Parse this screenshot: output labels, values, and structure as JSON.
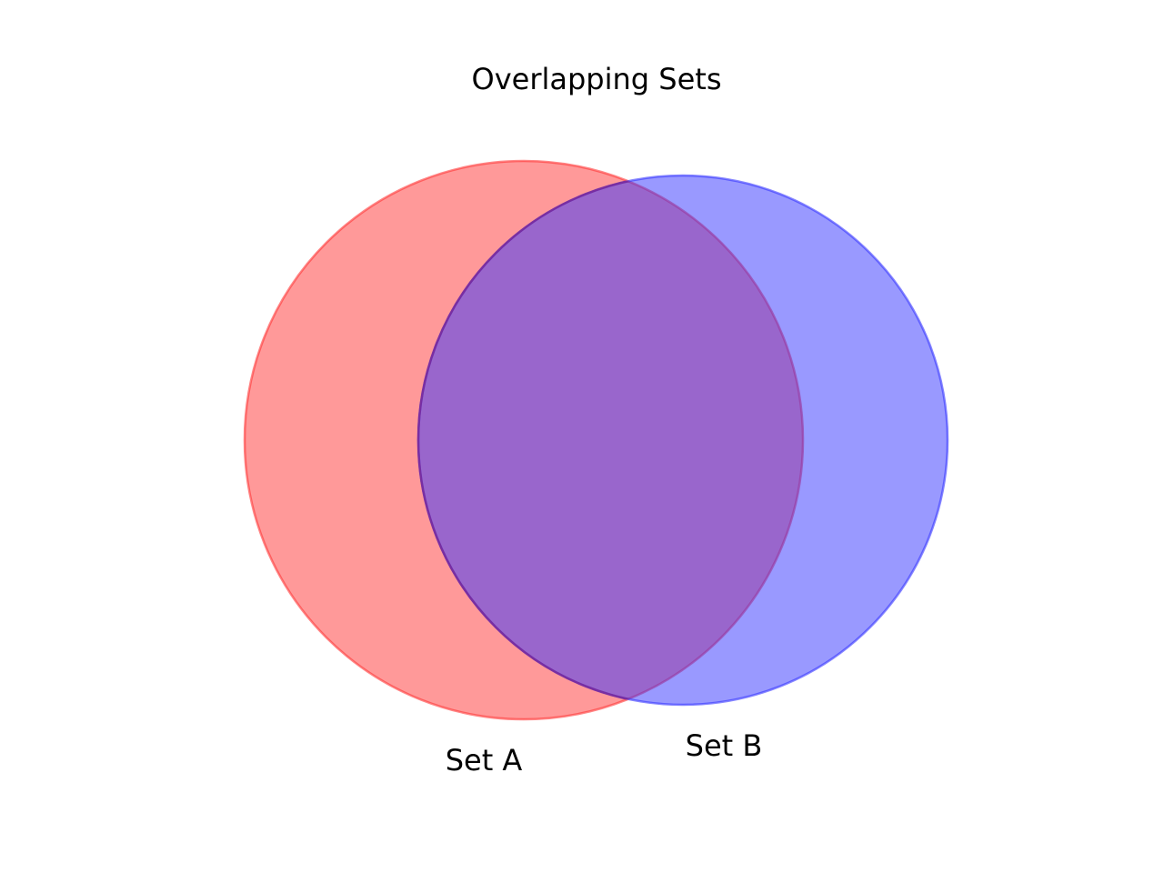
{
  "diagram": {
    "type": "venn",
    "title": "Overlapping Sets",
    "sets": [
      {
        "label": "Set A",
        "fill": "#ff3333",
        "stroke": "#ff3333",
        "opacity": 0.5
      },
      {
        "label": "Set B",
        "fill": "#3333ff",
        "stroke": "#3333ff",
        "opacity": 0.5
      }
    ],
    "intersection": {
      "stroke": "#7a2a9a"
    }
  }
}
